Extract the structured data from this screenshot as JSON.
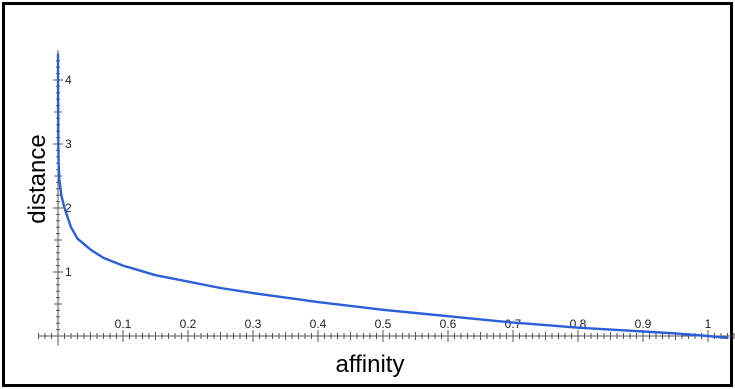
{
  "chart_data": {
    "type": "line",
    "xlabel": "affinity",
    "ylabel": "distance",
    "xlim": [
      -0.03,
      1.04
    ],
    "ylim": [
      -0.15,
      4.4
    ],
    "x_ticks": [
      "0.1",
      "0.2",
      "0.3",
      "0.4",
      "0.5",
      "0.6",
      "0.7",
      "0.8",
      "0.9",
      "1"
    ],
    "y_ticks": [
      "1",
      "2",
      "3",
      "4"
    ],
    "grid": false,
    "series": [
      {
        "color": "#2a5fd8",
        "x": [
          2e-05,
          0.0001,
          0.0005,
          0.001,
          0.002,
          0.005,
          0.01,
          0.02,
          0.03,
          0.05,
          0.07,
          0.1,
          0.15,
          0.2,
          0.25,
          0.3,
          0.35,
          0.4,
          0.45,
          0.5,
          0.55,
          0.6,
          0.65,
          0.7,
          0.75,
          0.8,
          0.85,
          0.9,
          0.95,
          1.0,
          1.03
        ],
        "y": [
          4.4,
          3.7,
          3.0,
          2.7,
          2.45,
          2.2,
          2.0,
          1.7,
          1.52,
          1.35,
          1.22,
          1.1,
          0.95,
          0.85,
          0.75,
          0.67,
          0.6,
          0.53,
          0.47,
          0.41,
          0.36,
          0.31,
          0.26,
          0.21,
          0.17,
          0.13,
          0.1,
          0.07,
          0.04,
          0.0,
          -0.03
        ]
      }
    ]
  }
}
